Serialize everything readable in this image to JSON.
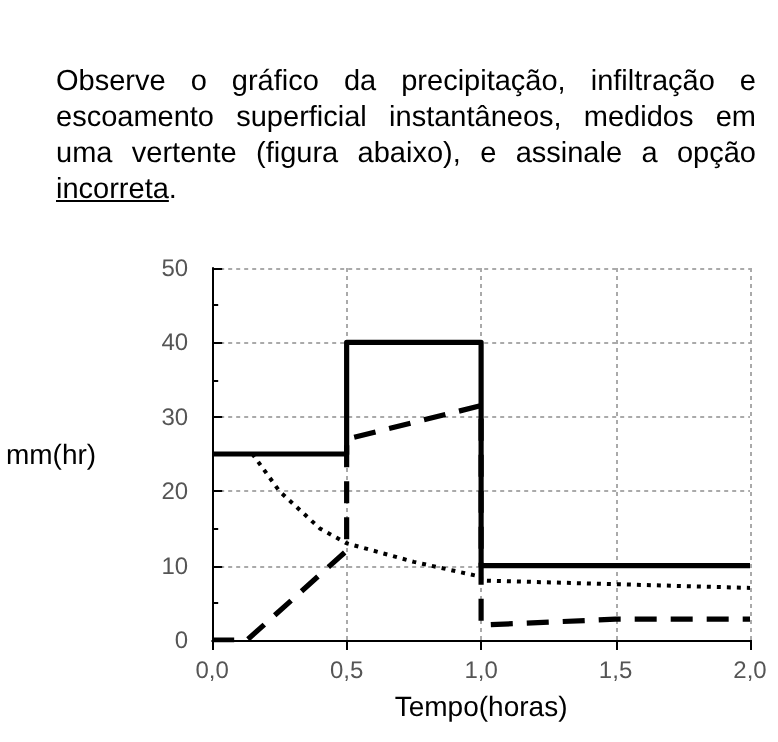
{
  "chart_data": {
    "type": "line",
    "title": "Observe o gráfico da precipitação, infiltração e escoamento superficial instantâneos, medidos em uma vertente (figura abaixo), e assinale a opção incorreta.",
    "xlabel": "Tempo(horas)",
    "ylabel": "mm(hr)",
    "series": [
      {
        "color": "#000000",
        "line_style": "solid",
        "x": [
          0,
          0.5,
          0.5,
          1,
          1,
          2
        ],
        "values": [
          25,
          25,
          40,
          40,
          10,
          10
        ]
      },
      {
        "color": "#000000",
        "line_style": "dashed",
        "x": [
          0,
          0.13,
          0.5,
          0.5,
          1,
          1,
          1.5,
          2
        ],
        "values": [
          0,
          0,
          12,
          27,
          31.5,
          2,
          2.8,
          2.8
        ]
      },
      {
        "color": "#000000",
        "line_style": "dotted",
        "x": [
          0,
          0.15,
          0.25,
          0.4,
          0.5,
          0.75,
          1,
          1,
          1.5,
          2
        ],
        "values": [
          25,
          25,
          20,
          15,
          13,
          10.5,
          8.5,
          8,
          7.5,
          7
        ]
      }
    ],
    "xlim": [
      0,
      2
    ],
    "xticks": [
      {
        "value": 0,
        "label": "0,0"
      },
      {
        "value": 0.5,
        "label": "0,5"
      },
      {
        "value": 1,
        "label": "1,0"
      },
      {
        "value": 1.5,
        "label": "1,5"
      },
      {
        "value": 2,
        "label": "2,0"
      }
    ],
    "ylim": [
      0,
      50
    ],
    "yticks": [
      0,
      10,
      20,
      30,
      40,
      50
    ],
    "grid": true,
    "marker": "none"
  }
}
